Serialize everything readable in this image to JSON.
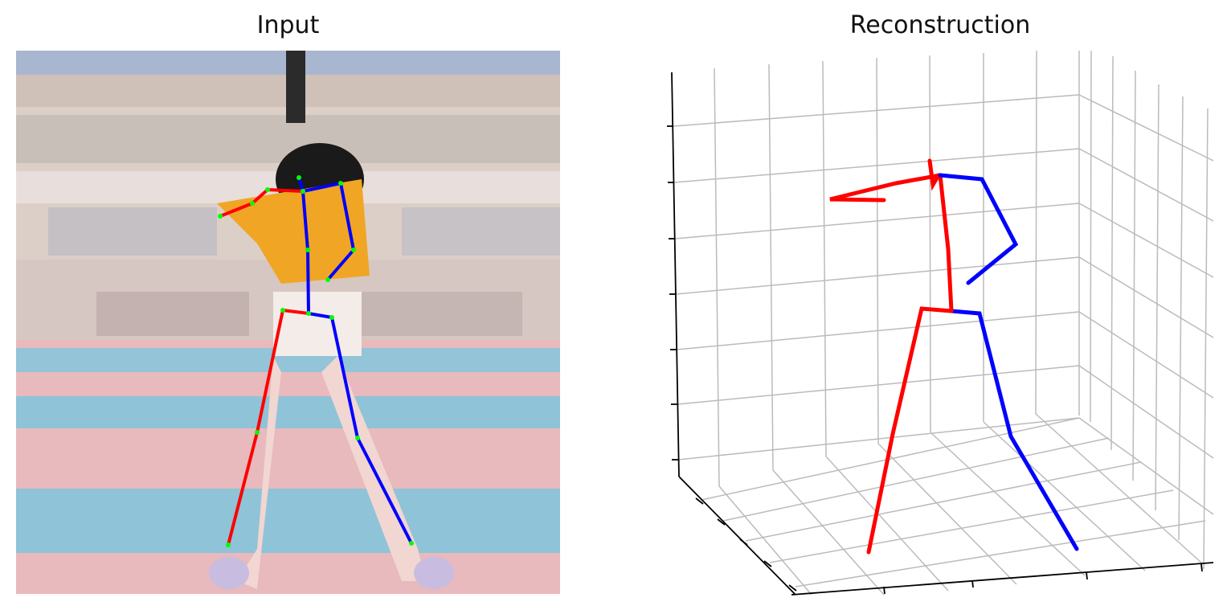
{
  "titles": {
    "input": "Input",
    "reconstruction": "Reconstruction"
  },
  "colors": {
    "right_side": "#ff0000",
    "left_side": "#0000ff",
    "joint": "#00ff00",
    "grid": "#bbbbbb"
  }
}
